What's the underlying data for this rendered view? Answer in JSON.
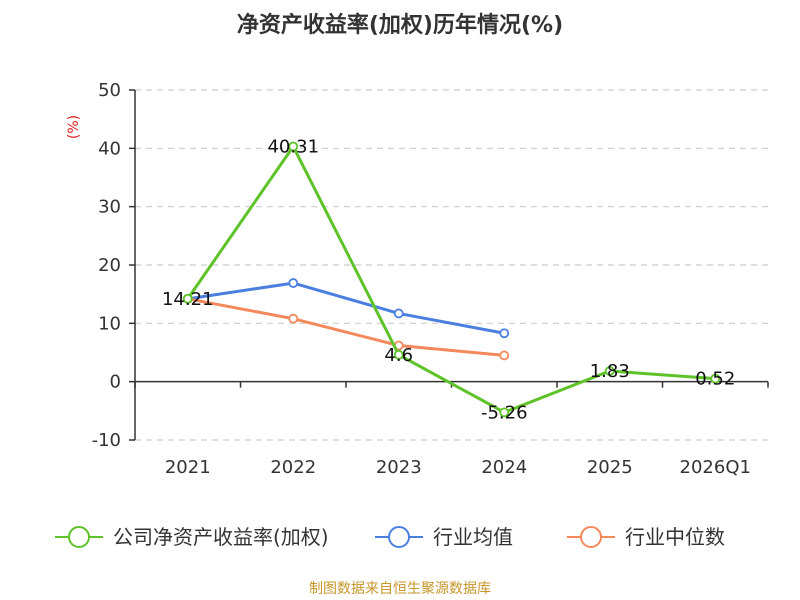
{
  "chart_data": {
    "type": "line",
    "title": "净资产收益率(加权)历年情况(%)",
    "ylabel": "(%)",
    "categories": [
      "2021",
      "2022",
      "2023",
      "2024",
      "2025",
      "2026Q1"
    ],
    "ylim": [
      -10,
      50
    ],
    "yticks": [
      50,
      40,
      30,
      20,
      10,
      0,
      -10
    ],
    "grid": true,
    "legend_position": "bottom",
    "series": [
      {
        "name": "公司净资产收益率(加权)",
        "color": "#5ec229",
        "values": [
          14.21,
          40.31,
          4.6,
          -5.26,
          1.83,
          0.52
        ],
        "labels": [
          "14.21",
          "40.31",
          "4.6",
          "-5.26",
          "1.83",
          "0.52"
        ]
      },
      {
        "name": "行业均值",
        "color": "#4a7fe0",
        "values": [
          14.2,
          16.9,
          11.7,
          8.3,
          null,
          null
        ]
      },
      {
        "name": "行业中位数",
        "color": "#f5895c",
        "values": [
          14.2,
          10.8,
          6.2,
          4.5,
          null,
          null
        ]
      }
    ]
  },
  "source": "制图数据来自恒生聚源数据库"
}
